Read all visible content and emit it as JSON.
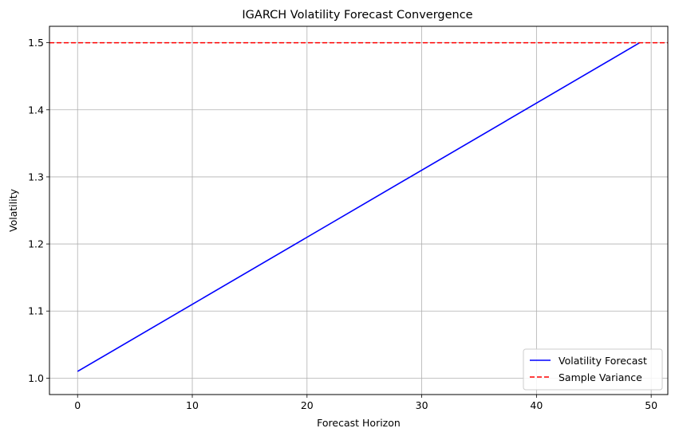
{
  "chart_data": {
    "type": "line",
    "title": "IGARCH Volatility Forecast Convergence",
    "xlabel": "Forecast Horizon",
    "ylabel": "Volatility",
    "xlim": [
      -2.45,
      51.45
    ],
    "ylim": [
      0.9755,
      1.5245
    ],
    "xticks": [
      0,
      10,
      20,
      30,
      40,
      50
    ],
    "yticks": [
      1.0,
      1.1,
      1.2,
      1.3,
      1.4,
      1.5
    ],
    "xtick_labels": [
      "0",
      "10",
      "20",
      "30",
      "40",
      "50"
    ],
    "ytick_labels": [
      "1.0",
      "1.1",
      "1.2",
      "1.3",
      "1.4",
      "1.5"
    ],
    "grid": true,
    "legend_position": "lower-right",
    "series": [
      {
        "name": "Volatility Forecast",
        "kind": "line",
        "style": "solid",
        "color": "#0000ff",
        "x": [
          0,
          49
        ],
        "y": [
          1.01,
          1.5
        ]
      },
      {
        "name": "Sample Variance",
        "kind": "hline",
        "style": "dashed",
        "color": "#ff0000",
        "y": 1.5
      }
    ]
  }
}
